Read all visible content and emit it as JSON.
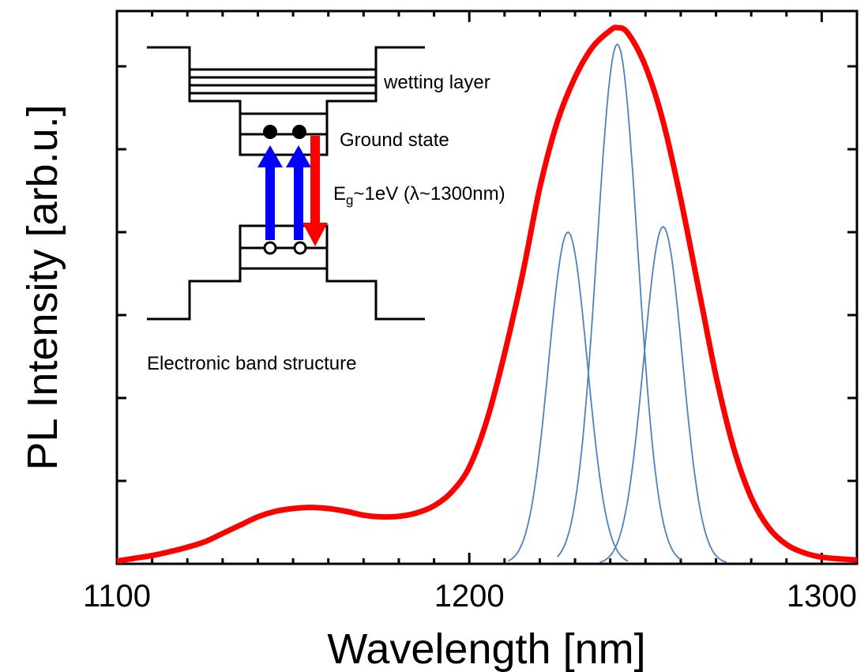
{
  "chart_data": {
    "type": "line",
    "xlabel": "Wavelength [nm]",
    "ylabel": "PL Intensity [arb.u.]",
    "xlim": [
      1100,
      1310
    ],
    "ylim": [
      0,
      1.0
    ],
    "x_ticks": [
      1100,
      1200,
      1300
    ],
    "x_minor_step": 10,
    "y_tick_values": [
      0.15,
      0.3,
      0.45,
      0.6,
      0.75,
      0.9
    ],
    "y_tick_labels_shown": false,
    "grid": false,
    "series": [
      {
        "role": "measured PL spectrum",
        "color": "#ff0000",
        "x": [
          1100,
          1105,
          1110,
          1115,
          1120,
          1125,
          1130,
          1135,
          1140,
          1145,
          1150,
          1155,
          1160,
          1165,
          1170,
          1175,
          1180,
          1185,
          1190,
          1195,
          1200,
          1205,
          1210,
          1215,
          1220,
          1225,
          1230,
          1235,
          1240,
          1242,
          1245,
          1250,
          1255,
          1260,
          1265,
          1270,
          1275,
          1280,
          1285,
          1290,
          1295,
          1300,
          1305,
          1310
        ],
        "y": [
          0.005,
          0.01,
          0.015,
          0.022,
          0.03,
          0.04,
          0.055,
          0.07,
          0.085,
          0.095,
          0.1,
          0.102,
          0.1,
          0.095,
          0.088,
          0.085,
          0.086,
          0.092,
          0.105,
          0.13,
          0.175,
          0.26,
          0.38,
          0.52,
          0.68,
          0.8,
          0.88,
          0.935,
          0.965,
          0.97,
          0.96,
          0.9,
          0.8,
          0.66,
          0.5,
          0.34,
          0.21,
          0.12,
          0.065,
          0.035,
          0.02,
          0.012,
          0.009,
          0.007
        ]
      },
      {
        "role": "gaussian fit 1",
        "color": "#4f81bd",
        "center": 1228,
        "amplitude": 0.6,
        "sigma": 5.5,
        "range": [
          1211,
          1245
        ]
      },
      {
        "role": "gaussian fit 2",
        "color": "#4f81bd",
        "center": 1242,
        "amplitude": 0.94,
        "sigma": 5.8,
        "range": [
          1225,
          1260
        ]
      },
      {
        "role": "gaussian fit 3",
        "color": "#4f81bd",
        "center": 1255,
        "amplitude": 0.61,
        "sigma": 5.5,
        "range": [
          1237,
          1273
        ]
      }
    ],
    "inset": {
      "labels": {
        "wetting_layer": "wetting layer",
        "ground_state": "Ground state",
        "energy_main": "E",
        "energy_sub": "g",
        "energy_rest": "~1eV (λ~1300nm)",
        "caption": "Electronic band structure"
      },
      "colors": {
        "absorption_arrow": "#0000ff",
        "emission_arrow": "#ff0000"
      }
    }
  }
}
